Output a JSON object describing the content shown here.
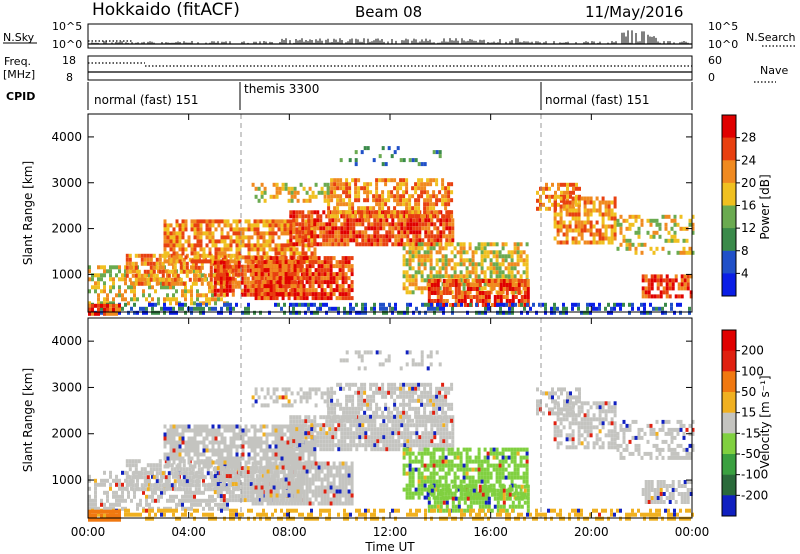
{
  "header": {
    "station": "Hokkaido (fitACF)",
    "beam": "Beam 08",
    "date": "11/May/2016"
  },
  "params": {
    "nsky_label": "N.Sky",
    "nsky_ticks": [
      "10^5",
      "10^0"
    ],
    "nsearch_label": "N.Search",
    "nsearch_ticks": [
      "10^5",
      "10^0"
    ],
    "freq_label": "Freq.",
    "freq_unit": "[MHz]",
    "freq_ticks": [
      "18",
      "8"
    ],
    "nave_label": "Nave",
    "nave_ticks": [
      "60",
      "0"
    ],
    "cpid_label": "CPID",
    "cpid_segments": [
      {
        "label": "normal (fast) 151",
        "start": 0
      },
      {
        "label": "themis 3300",
        "start": 6
      },
      {
        "label": "normal (fast) 151",
        "start": 18
      }
    ]
  },
  "chart_data": [
    {
      "type": "heatmap",
      "name": "power",
      "xlabel": "",
      "ylabel": "Slant Range [km]",
      "xlim": [
        0,
        24
      ],
      "ylim": [
        180,
        4500
      ],
      "yticks": [
        "1000",
        "2000",
        "3000",
        "4000"
      ],
      "colorbar_label": "Power [dB]",
      "colorbar_ticks": [
        "4",
        "8",
        "12",
        "16",
        "20",
        "24",
        "28"
      ],
      "colors": [
        "#0a1ee6",
        "#2050c8",
        "#3a8a4a",
        "#6aaa50",
        "#f0c020",
        "#f08a20",
        "#e84010",
        "#e00000"
      ]
    },
    {
      "type": "heatmap",
      "name": "velocity",
      "xlabel": "Time UT",
      "ylabel": "Slant Range [km]",
      "xlim": [
        0,
        24
      ],
      "ylim": [
        180,
        4500
      ],
      "yticks": [
        "1000",
        "2000",
        "3000",
        "4000"
      ],
      "xticks": [
        "00:00",
        "04:00",
        "08:00",
        "12:00",
        "16:00",
        "20:00",
        "00:00"
      ],
      "colorbar_label": "Velocity [m s⁻¹]",
      "colorbar_ticks": [
        "200",
        "100",
        "50",
        "15",
        "-15",
        "-50",
        "-100",
        "-200"
      ],
      "colors": [
        "#1020c0",
        "#2a6a3a",
        "#3aa040",
        "#80d040",
        "#c4c4c0",
        "#f0b020",
        "#f07810",
        "#e02010",
        "#e00000"
      ]
    }
  ],
  "colors": {
    "grey": "#c4c4c0",
    "green": "#7fd040",
    "red": "#e81808",
    "orange": "#f08a20"
  }
}
